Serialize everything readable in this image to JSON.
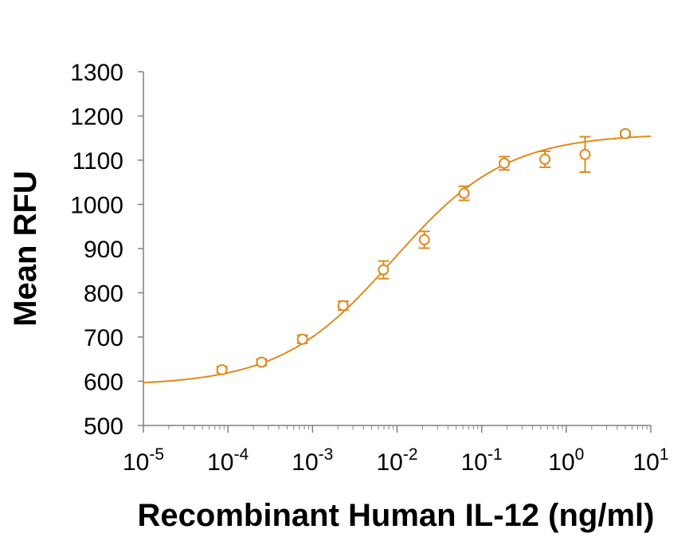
{
  "chart_data": {
    "type": "scatter",
    "title": "",
    "xlabel": "Recombinant Human IL-12 (ng/ml)",
    "ylabel": "Mean RFU",
    "x_scale": "log10",
    "xlim": [
      1e-05,
      10
    ],
    "ylim": [
      500,
      1300
    ],
    "x_ticks": [
      {
        "value": 1e-05,
        "base": "10",
        "exp": "-5"
      },
      {
        "value": 0.0001,
        "base": "10",
        "exp": "-4"
      },
      {
        "value": 0.001,
        "base": "10",
        "exp": "-3"
      },
      {
        "value": 0.01,
        "base": "10",
        "exp": "-2"
      },
      {
        "value": 0.1,
        "base": "10",
        "exp": "-1"
      },
      {
        "value": 1,
        "base": "10",
        "exp": "0"
      },
      {
        "value": 10,
        "base": "10",
        "exp": "1"
      }
    ],
    "y_ticks": [
      {
        "value": 500,
        "label": "500"
      },
      {
        "value": 600,
        "label": "600"
      },
      {
        "value": 700,
        "label": "700"
      },
      {
        "value": 800,
        "label": "800"
      },
      {
        "value": 900,
        "label": "900"
      },
      {
        "value": 1000,
        "label": "1000"
      },
      {
        "value": 1100,
        "label": "1100"
      },
      {
        "value": 1200,
        "label": "1200"
      },
      {
        "value": 1300,
        "label": "1300"
      }
    ],
    "grid": false,
    "color": "#E08A1E",
    "series": [
      {
        "x": [
          8.5e-05,
          0.00025,
          0.00076,
          0.0023,
          0.0069,
          0.021,
          0.062,
          0.185,
          0.56,
          1.67,
          5.0
        ],
        "y": [
          626,
          643,
          695,
          771,
          852,
          920,
          1025,
          1093,
          1102,
          1113,
          1160
        ],
        "error": [
          7,
          7,
          9,
          10,
          20,
          19,
          16,
          15,
          18,
          40,
          5
        ]
      }
    ],
    "fit": {
      "model": "4PL",
      "bottom": 590,
      "top": 1160,
      "ec50": 0.009,
      "hill": 0.65
    }
  }
}
